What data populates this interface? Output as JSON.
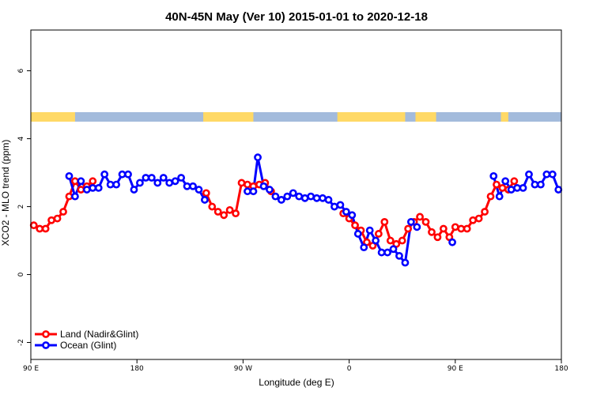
{
  "chart_data": {
    "type": "line",
    "title": "40N-45N May (Ver 10)   2015-01-01 to 2020-12-18",
    "xlabel": "Longitude (deg E)",
    "ylabel": "XCO2 - MLO trend (ppm)",
    "xlim": [
      0,
      360
    ],
    "ylim": [
      -2.5,
      7.2
    ],
    "x_ticks": [
      {
        "value": 0,
        "label": "90 E"
      },
      {
        "value": 72,
        "label": "180"
      },
      {
        "value": 144,
        "label": "90 W"
      },
      {
        "value": 216,
        "label": "0"
      },
      {
        "value": 288,
        "label": "90 E"
      },
      {
        "value": 360,
        "label": "180"
      }
    ],
    "y_ticks": [
      {
        "value": -2,
        "label": "-2"
      },
      {
        "value": 0,
        "label": "0"
      },
      {
        "value": 2,
        "label": "2"
      },
      {
        "value": 4,
        "label": "4"
      },
      {
        "value": 6,
        "label": "6"
      }
    ],
    "grid": false,
    "legend_position": "bottom-left",
    "surface_strip": {
      "colors": {
        "land": "#ffd966",
        "ocean": "#a3bbdc"
      },
      "land_segments": [
        [
          0,
          30
        ],
        [
          117,
          151
        ],
        [
          208,
          254
        ],
        [
          261,
          275
        ],
        [
          319,
          324
        ]
      ]
    },
    "series": [
      {
        "name": "Land (Nadir&Glint)",
        "color": "#ff0000",
        "points": [
          [
            [
              2,
              1.45
            ],
            [
              6,
              1.35
            ],
            [
              10,
              1.35
            ],
            [
              14,
              1.6
            ],
            [
              18,
              1.65
            ],
            [
              22,
              1.85
            ],
            [
              26,
              2.3
            ],
            [
              30,
              2.75
            ],
            [
              34,
              2.5
            ],
            [
              38,
              2.6
            ],
            [
              42,
              2.75
            ]
          ],
          [
            [
              119,
              2.4
            ],
            [
              123,
              2.0
            ],
            [
              127,
              1.85
            ],
            [
              131,
              1.75
            ],
            [
              135,
              1.9
            ],
            [
              139,
              1.8
            ],
            [
              143,
              2.7
            ],
            [
              147,
              2.65
            ],
            [
              151,
              2.6
            ],
            [
              155,
              2.65
            ],
            [
              159,
              2.7
            ],
            [
              163,
              2.45
            ]
          ],
          [
            [
              212,
              1.8
            ],
            [
              216,
              1.65
            ],
            [
              220,
              1.45
            ],
            [
              224,
              1.3
            ],
            [
              228,
              0.95
            ],
            [
              232,
              0.85
            ],
            [
              236,
              1.2
            ],
            [
              240,
              1.55
            ],
            [
              244,
              1.0
            ],
            [
              248,
              0.9
            ],
            [
              252,
              1.0
            ],
            [
              256,
              1.35
            ],
            [
              260,
              1.55
            ],
            [
              264,
              1.7
            ],
            [
              268,
              1.55
            ],
            [
              272,
              1.25
            ],
            [
              276,
              1.1
            ],
            [
              280,
              1.35
            ],
            [
              284,
              1.1
            ],
            [
              288,
              1.4
            ],
            [
              292,
              1.35
            ],
            [
              296,
              1.35
            ],
            [
              300,
              1.6
            ],
            [
              304,
              1.65
            ],
            [
              308,
              1.85
            ],
            [
              312,
              2.3
            ],
            [
              316,
              2.65
            ],
            [
              320,
              2.55
            ],
            [
              324,
              2.5
            ],
            [
              328,
              2.75
            ]
          ]
        ]
      },
      {
        "name": "Ocean (Glint)",
        "color": "#0000ff",
        "points": [
          [
            [
              26,
              2.9
            ],
            [
              30,
              2.3
            ],
            [
              34,
              2.75
            ],
            [
              38,
              2.5
            ],
            [
              42,
              2.55
            ],
            [
              46,
              2.55
            ],
            [
              50,
              2.95
            ],
            [
              54,
              2.65
            ],
            [
              58,
              2.65
            ],
            [
              62,
              2.95
            ],
            [
              66,
              2.95
            ],
            [
              70,
              2.5
            ],
            [
              74,
              2.7
            ],
            [
              78,
              2.85
            ],
            [
              82,
              2.85
            ],
            [
              86,
              2.7
            ],
            [
              90,
              2.85
            ],
            [
              94,
              2.7
            ],
            [
              98,
              2.75
            ],
            [
              102,
              2.85
            ],
            [
              106,
              2.6
            ],
            [
              110,
              2.6
            ],
            [
              114,
              2.5
            ],
            [
              118,
              2.2
            ]
          ],
          [
            [
              147,
              2.45
            ],
            [
              151,
              2.45
            ],
            [
              154,
              3.45
            ],
            [
              158,
              2.6
            ],
            [
              162,
              2.5
            ],
            [
              166,
              2.3
            ],
            [
              170,
              2.2
            ],
            [
              174,
              2.3
            ],
            [
              178,
              2.4
            ],
            [
              182,
              2.3
            ],
            [
              186,
              2.25
            ],
            [
              190,
              2.3
            ],
            [
              194,
              2.25
            ],
            [
              198,
              2.25
            ],
            [
              202,
              2.2
            ],
            [
              206,
              2.0
            ],
            [
              210,
              2.05
            ],
            [
              214,
              1.85
            ],
            [
              218,
              1.75
            ],
            [
              222,
              1.2
            ],
            [
              226,
              0.8
            ],
            [
              230,
              1.3
            ],
            [
              234,
              1.0
            ],
            [
              238,
              0.65
            ],
            [
              242,
              0.65
            ],
            [
              246,
              0.75
            ],
            [
              250,
              0.55
            ],
            [
              254,
              0.35
            ],
            [
              258,
              1.55
            ],
            [
              262,
              1.4
            ]
          ],
          [
            [
              286,
              0.95
            ]
          ],
          [
            [
              314,
              2.9
            ],
            [
              318,
              2.3
            ],
            [
              322,
              2.75
            ],
            [
              326,
              2.5
            ],
            [
              330,
              2.55
            ],
            [
              334,
              2.55
            ],
            [
              338,
              2.95
            ],
            [
              342,
              2.65
            ],
            [
              346,
              2.65
            ],
            [
              350,
              2.95
            ],
            [
              354,
              2.95
            ],
            [
              358,
              2.5
            ]
          ]
        ]
      }
    ]
  }
}
